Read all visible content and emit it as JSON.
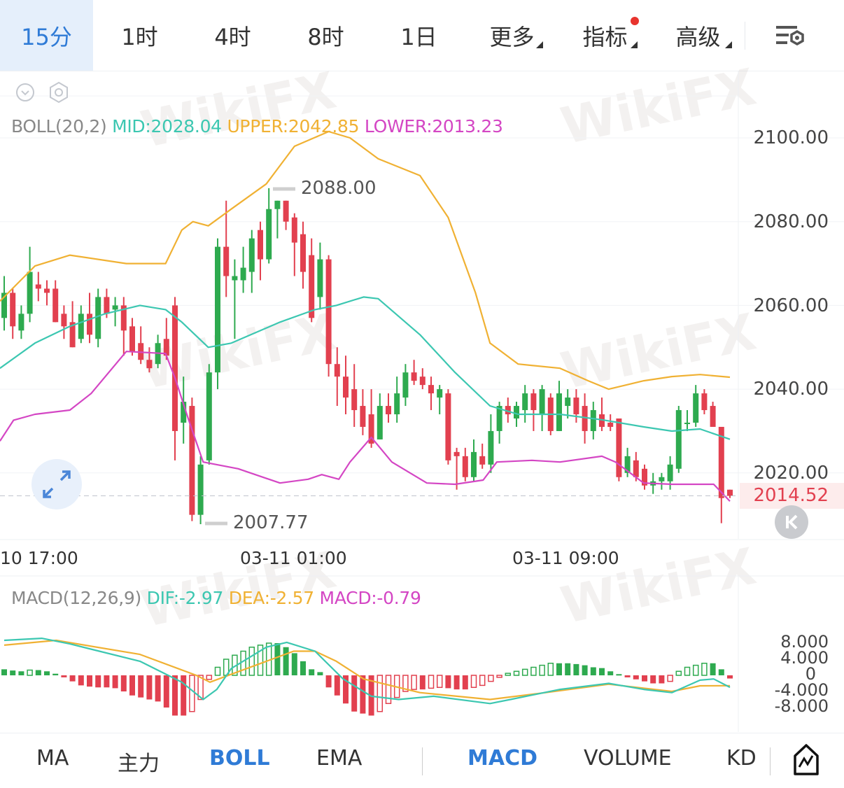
{
  "timeframe_tabs": [
    {
      "label": "15分",
      "active": true
    },
    {
      "label": "1时"
    },
    {
      "label": "4时"
    },
    {
      "label": "8时"
    },
    {
      "label": "1日"
    },
    {
      "label": "更多",
      "dropdown": true
    },
    {
      "label": "指标",
      "dropdown": true,
      "badge": true
    },
    {
      "label": "高级",
      "dropdown": true
    }
  ],
  "settings_icon": "chart-settings-icon",
  "watermark": "WikiFX",
  "main_legend": {
    "name": "BOLL(20,2)",
    "mid": "MID:2028.04",
    "upper": "UPPER:2042.85",
    "lower": "LOWER:2013.23"
  },
  "macd_legend": {
    "name": "MACD(12,26,9)",
    "dif": "DIF:-2.97",
    "dea": "DEA:-2.57",
    "macd": "MACD:-0.79"
  },
  "price_axis": [
    "2100.00",
    "2080.00",
    "2060.00",
    "2040.00",
    "2020.00"
  ],
  "last_price": "2014.52",
  "high_label": "2088.00",
  "low_label": "2007.77",
  "x_axis": [
    "10 17:00",
    "03-11 01:00",
    "03-11 09:00"
  ],
  "macd_axis": [
    "8.000",
    "4.000",
    "0",
    "-4.000",
    "-8.000"
  ],
  "bottom_tabs": {
    "main": [
      {
        "label": "MA"
      },
      {
        "label": "主力"
      },
      {
        "label": "BOLL",
        "active": true
      },
      {
        "label": "EMA"
      }
    ],
    "sub": [
      {
        "label": "MACD",
        "active": true
      },
      {
        "label": "VOLUME"
      },
      {
        "label": "KD"
      }
    ]
  },
  "colors": {
    "up": "#2eaa4f",
    "down": "#e2404f",
    "upper": "#f0b133",
    "mid": "#3cc7b1",
    "lower": "#d446c4",
    "accent": "#2f7bd6"
  },
  "chart_data": [
    {
      "type": "candlestick",
      "ylim": [
        2000,
        2110
      ],
      "yticks": [
        2020,
        2040,
        2060,
        2080,
        2100
      ],
      "grid": true,
      "candles_ohlc": [
        [
          2057,
          2067,
          2054,
          2063
        ],
        [
          2063,
          2064,
          2052,
          2055
        ],
        [
          2054,
          2060,
          2052,
          2058
        ],
        [
          2058,
          2074,
          2056,
          2068
        ],
        [
          2065,
          2068,
          2061,
          2064
        ],
        [
          2064,
          2066,
          2060,
          2063
        ],
        [
          2064,
          2066,
          2056,
          2056
        ],
        [
          2058,
          2060,
          2052,
          2055
        ],
        [
          2056,
          2061,
          2050,
          2050
        ],
        [
          2052,
          2060,
          2051,
          2058
        ],
        [
          2058,
          2063,
          2051,
          2053
        ],
        [
          2052,
          2064,
          2050,
          2062
        ],
        [
          2062,
          2064,
          2057,
          2058
        ],
        [
          2059,
          2062,
          2055,
          2060
        ],
        [
          2060,
          2062,
          2048,
          2054
        ],
        [
          2055,
          2057,
          2048,
          2049
        ],
        [
          2051,
          2055,
          2046,
          2047
        ],
        [
          2047,
          2050,
          2044,
          2045
        ],
        [
          2046,
          2053,
          2045,
          2051
        ],
        [
          2052,
          2057,
          2047,
          2048
        ],
        [
          2060,
          2062,
          2023,
          2030
        ],
        [
          2032,
          2043,
          2027,
          2037
        ],
        [
          2036,
          2038,
          2008.5,
          2010
        ],
        [
          2010,
          2024,
          2007.77,
          2022
        ],
        [
          2023,
          2046,
          2022,
          2044
        ],
        [
          2044,
          2076,
          2040,
          2074
        ],
        [
          2074,
          2085,
          2062,
          2067
        ],
        [
          2066,
          2071,
          2052,
          2067
        ],
        [
          2066,
          2074,
          2063,
          2069
        ],
        [
          2068,
          2078,
          2063,
          2076
        ],
        [
          2078,
          2080,
          2066,
          2071
        ],
        [
          2071,
          2088,
          2070,
          2083
        ],
        [
          2083,
          2085,
          2076,
          2085
        ],
        [
          2085,
          2085,
          2078,
          2080
        ],
        [
          2081,
          2082,
          2067,
          2075
        ],
        [
          2077,
          2080,
          2064,
          2068
        ],
        [
          2072,
          2076,
          2056,
          2057
        ],
        [
          2062,
          2075,
          2059,
          2071
        ],
        [
          2071,
          2072,
          2043,
          2046
        ],
        [
          2046,
          2050,
          2036,
          2043
        ],
        [
          2043,
          2048,
          2034,
          2038
        ],
        [
          2040,
          2046,
          2031,
          2035
        ],
        [
          2036,
          2040,
          2029,
          2031
        ],
        [
          2034,
          2040,
          2026,
          2027
        ],
        [
          2028,
          2039,
          2028,
          2036
        ],
        [
          2036,
          2039,
          2032,
          2034
        ],
        [
          2034,
          2043,
          2032,
          2039
        ],
        [
          2038,
          2046,
          2036,
          2044
        ],
        [
          2044,
          2047,
          2041,
          2042
        ],
        [
          2043,
          2045,
          2040,
          2041
        ],
        [
          2041,
          2043,
          2035,
          2039
        ],
        [
          2038,
          2041,
          2034,
          2040
        ],
        [
          2039,
          2040,
          2022,
          2023
        ],
        [
          2025,
          2026,
          2016,
          2024
        ],
        [
          2024,
          2026,
          2018,
          2019
        ],
        [
          2019,
          2028,
          2018,
          2025
        ],
        [
          2024,
          2027,
          2021,
          2022
        ],
        [
          2022,
          2034,
          2020,
          2030
        ],
        [
          2030,
          2037,
          2027,
          2036
        ],
        [
          2036,
          2038,
          2032,
          2034
        ],
        [
          2033,
          2037,
          2031,
          2036
        ],
        [
          2035,
          2041,
          2032,
          2039
        ],
        [
          2039,
          2040,
          2030,
          2035
        ],
        [
          2034,
          2041,
          2030,
          2040
        ],
        [
          2038,
          2039,
          2029,
          2030
        ],
        [
          2030,
          2042,
          2030,
          2039
        ],
        [
          2036,
          2040,
          2033,
          2038
        ],
        [
          2038,
          2040,
          2032,
          2034
        ],
        [
          2036,
          2039,
          2027,
          2030
        ],
        [
          2030,
          2037,
          2028,
          2035
        ],
        [
          2034,
          2038,
          2030,
          2031
        ],
        [
          2032,
          2034,
          2030,
          2031
        ],
        [
          2033,
          2033,
          2018,
          2019
        ],
        [
          2020,
          2026,
          2019,
          2024
        ],
        [
          2023,
          2025,
          2018,
          2019
        ],
        [
          2021,
          2022,
          2016,
          2017
        ],
        [
          2017,
          2020,
          2015,
          2018
        ],
        [
          2018,
          2020,
          2016,
          2019
        ],
        [
          2018,
          2024,
          2016,
          2022
        ],
        [
          2021,
          2036,
          2020,
          2035
        ],
        [
          2032,
          2035,
          2030,
          2032
        ],
        [
          2032,
          2041,
          2031,
          2039
        ],
        [
          2039,
          2040,
          2034,
          2035
        ],
        [
          2036,
          2037,
          2031,
          2031
        ],
        [
          2031,
          2031,
          2008,
          2014
        ],
        [
          2016,
          2016,
          2014,
          2014.52
        ]
      ],
      "boll_upper": [
        [
          -0.5,
          2061
        ],
        [
          3.6,
          2069.4
        ],
        [
          7.7,
          2072
        ],
        [
          14.3,
          2070
        ],
        [
          18.9,
          2070
        ],
        [
          20.8,
          2078
        ],
        [
          22.1,
          2080
        ],
        [
          23.9,
          2079
        ],
        [
          26.6,
          2083
        ],
        [
          30.7,
          2089
        ],
        [
          34,
          2098
        ],
        [
          38,
          2101.5
        ],
        [
          40.5,
          2100
        ],
        [
          43.8,
          2095
        ],
        [
          48.7,
          2091
        ],
        [
          52,
          2081
        ],
        [
          55.2,
          2063
        ],
        [
          56.9,
          2051
        ],
        [
          60.2,
          2046
        ],
        [
          65.1,
          2045
        ],
        [
          68.4,
          2042
        ],
        [
          70.8,
          2040
        ],
        [
          74.9,
          2042
        ],
        [
          78.2,
          2043
        ],
        [
          81.5,
          2043.5
        ],
        [
          85,
          2042.85
        ]
      ],
      "boll_mid": [
        [
          -0.5,
          2045
        ],
        [
          3.6,
          2051
        ],
        [
          7.7,
          2055
        ],
        [
          11.8,
          2058
        ],
        [
          15.9,
          2060
        ],
        [
          18.9,
          2059
        ],
        [
          20.8,
          2056
        ],
        [
          23.9,
          2050
        ],
        [
          26.6,
          2051
        ],
        [
          32.3,
          2056
        ],
        [
          36.4,
          2059
        ],
        [
          38.9,
          2060
        ],
        [
          42.1,
          2062
        ],
        [
          43.8,
          2061.6
        ],
        [
          48.7,
          2053
        ],
        [
          52.8,
          2044
        ],
        [
          56.9,
          2036
        ],
        [
          60.2,
          2034
        ],
        [
          65.1,
          2034
        ],
        [
          70,
          2032.7
        ],
        [
          74.9,
          2031
        ],
        [
          78.2,
          2030
        ],
        [
          81.5,
          2030.5
        ],
        [
          85,
          2028.04
        ]
      ],
      "boll_lower": [
        [
          -0.5,
          2027.6
        ],
        [
          1.1,
          2032.6
        ],
        [
          3.6,
          2034
        ],
        [
          7.7,
          2035
        ],
        [
          10.2,
          2039
        ],
        [
          14.3,
          2049
        ],
        [
          18.9,
          2048.5
        ],
        [
          20,
          2042.7
        ],
        [
          21.6,
          2032.7
        ],
        [
          23.3,
          2022.6
        ],
        [
          27.4,
          2021
        ],
        [
          32.3,
          2017.6
        ],
        [
          35.6,
          2018.5
        ],
        [
          37.2,
          2019.6
        ],
        [
          39.2,
          2018.5
        ],
        [
          40.5,
          2022.6
        ],
        [
          43,
          2028.5
        ],
        [
          45.4,
          2022.6
        ],
        [
          49.5,
          2017.6
        ],
        [
          52.8,
          2017.3
        ],
        [
          56.1,
          2018.3
        ],
        [
          57.7,
          2022.6
        ],
        [
          61.8,
          2023
        ],
        [
          65.1,
          2022.6
        ],
        [
          70,
          2024
        ],
        [
          71.6,
          2022.6
        ],
        [
          74.9,
          2017.6
        ],
        [
          78.2,
          2017.3
        ],
        [
          83.1,
          2017.3
        ],
        [
          85,
          2013.23
        ]
      ]
    },
    {
      "type": "bar",
      "ylim": [
        -12,
        12
      ],
      "yticks": [
        -8,
        -4,
        0,
        4,
        8
      ],
      "macd_histogram": [
        1.5,
        1.2,
        1.0,
        1.3,
        1.3,
        1.0,
        0.4,
        -0.5,
        -1.5,
        -2.5,
        -2.8,
        -3.0,
        -3.0,
        -3.2,
        -4,
        -5,
        -5.5,
        -6,
        -6.5,
        -8,
        -10,
        -10,
        -9,
        -6,
        -1,
        2,
        4,
        5,
        6,
        7,
        7.5,
        8,
        8,
        7,
        5.5,
        3.5,
        1.5,
        0.8,
        -3,
        -5,
        -7,
        -9,
        -9.5,
        -10,
        -9,
        -7,
        -5.5,
        -4,
        -3.5,
        -3.5,
        -3.2,
        -3,
        -3.2,
        -3.5,
        -3.5,
        -3,
        -2.5,
        -1.5,
        -0.5,
        0.5,
        1,
        1.5,
        2,
        2.5,
        3,
        3,
        3,
        2.8,
        2.5,
        2,
        1.8,
        1,
        0.3,
        -0.5,
        -1,
        -1.5,
        -2,
        -2,
        -1.5,
        1,
        2,
        2.5,
        3,
        3,
        1.5,
        -0.79
      ],
      "dif": [
        [
          0,
          8.7
        ],
        [
          4.4,
          9.2
        ],
        [
          7.7,
          7.8
        ],
        [
          15.9,
          3.5
        ],
        [
          20.8,
          -1.7
        ],
        [
          23.3,
          -6
        ],
        [
          24.9,
          -3.5
        ],
        [
          26.6,
          1.7
        ],
        [
          30.7,
          7
        ],
        [
          33.1,
          8.2
        ],
        [
          36.4,
          6
        ],
        [
          39.7,
          -0.9
        ],
        [
          43,
          -5.2
        ],
        [
          46.2,
          -6
        ],
        [
          50.3,
          -5.2
        ],
        [
          56.9,
          -7
        ],
        [
          59.3,
          -6
        ],
        [
          65.1,
          -3.5
        ],
        [
          70.8,
          -2
        ],
        [
          74.9,
          -3.5
        ],
        [
          78.2,
          -4.3
        ],
        [
          81.5,
          -1.2
        ],
        [
          83.1,
          -0.9
        ],
        [
          85,
          -2.97
        ]
      ],
      "dea": [
        [
          0,
          7.5
        ],
        [
          6.1,
          8.7
        ],
        [
          15.9,
          5.2
        ],
        [
          22.5,
          0
        ],
        [
          24.1,
          -1.7
        ],
        [
          27.4,
          0.9
        ],
        [
          33.9,
          6
        ],
        [
          36.4,
          6
        ],
        [
          38.9,
          3.5
        ],
        [
          42.1,
          -0.9
        ],
        [
          48.7,
          -4.3
        ],
        [
          56.9,
          -6
        ],
        [
          63.4,
          -4.3
        ],
        [
          70.8,
          -2.2
        ],
        [
          78.2,
          -4
        ],
        [
          81.5,
          -2.6
        ],
        [
          85,
          -2.57
        ]
      ]
    }
  ]
}
